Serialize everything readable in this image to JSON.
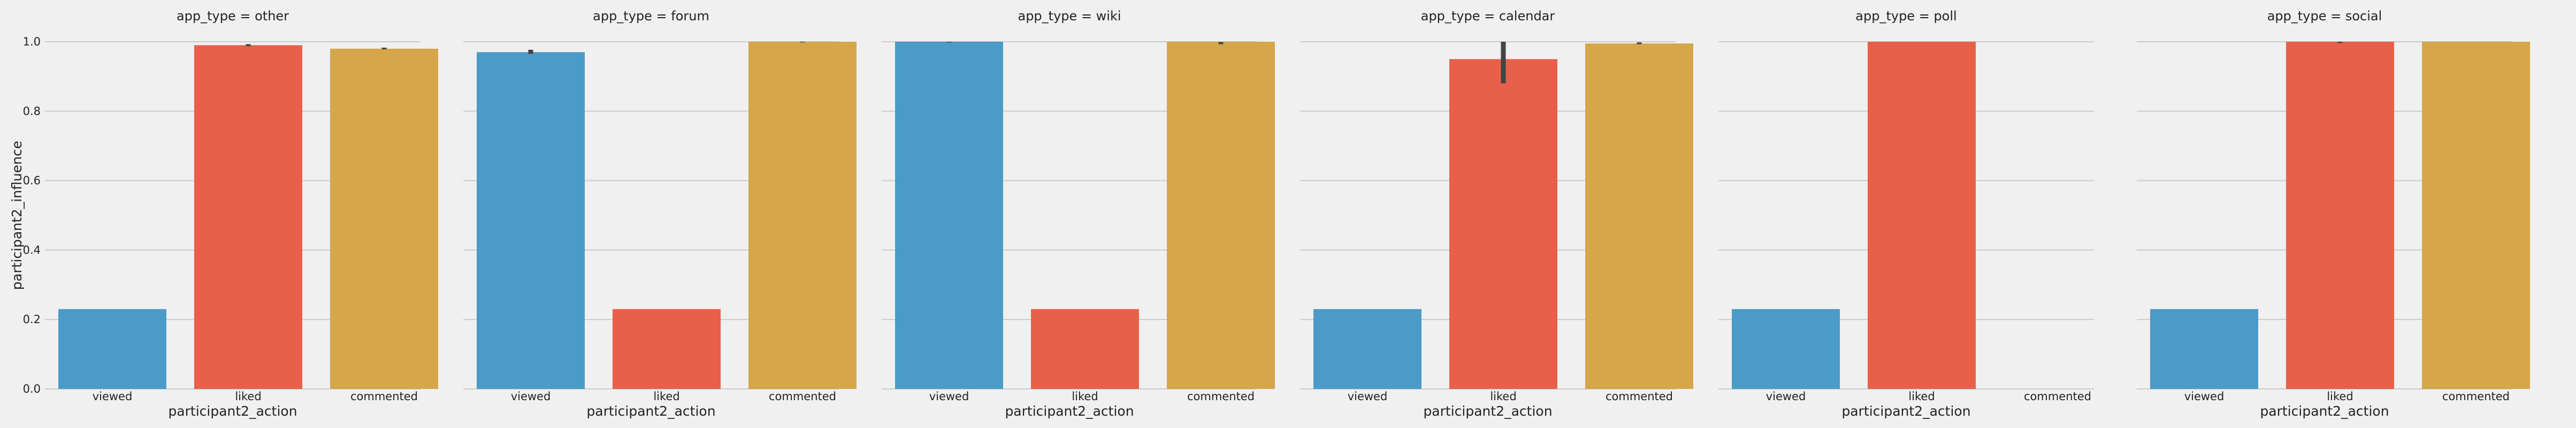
{
  "chart_data": {
    "type": "bar",
    "facet_prefix": "app_type = ",
    "facets": [
      "other",
      "forum",
      "wiki",
      "calendar",
      "poll",
      "social"
    ],
    "categories": [
      "viewed",
      "liked",
      "commented"
    ],
    "category_colors": [
      "#4a9bc8",
      "#e8604a",
      "#d6a64a"
    ],
    "xlabel": "participant2_action",
    "ylabel": "participant2_influence",
    "ylim": [
      0,
      1.0
    ],
    "yticks": [
      0.0,
      0.2,
      0.4,
      0.6,
      0.8,
      1.0
    ],
    "grid": true,
    "values": [
      [
        0.23,
        0.99,
        0.98
      ],
      [
        0.97,
        0.23,
        1.0
      ],
      [
        1.0,
        0.23,
        1.0
      ],
      [
        0.23,
        0.95,
        0.995
      ],
      [
        0.23,
        1.0,
        null
      ],
      [
        0.23,
        1.0,
        1.0
      ]
    ],
    "error_bars": [
      [
        null,
        [
          0.987,
          0.993
        ],
        [
          0.978,
          0.983
        ]
      ],
      [
        [
          0.965,
          0.977
        ],
        null,
        [
          0.998,
          1.0
        ]
      ],
      [
        [
          0.998,
          1.0
        ],
        null,
        [
          0.993,
          0.999
        ]
      ],
      [
        null,
        [
          0.88,
          1.0
        ],
        [
          0.993,
          0.998
        ]
      ],
      [
        null,
        null,
        null
      ],
      [
        null,
        [
          0.996,
          1.0
        ],
        null
      ]
    ]
  }
}
